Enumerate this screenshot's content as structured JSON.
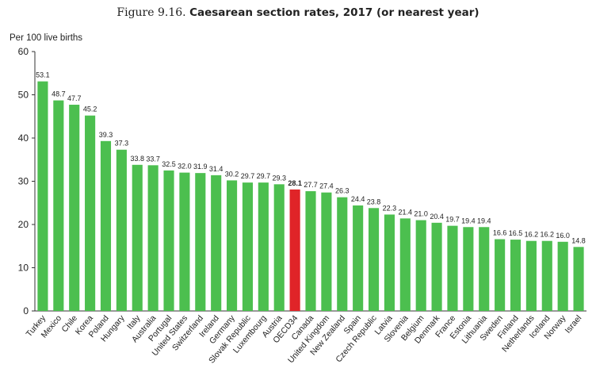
{
  "title": {
    "prefix": "Figure 9.16.",
    "main": "Caesarean section rates, 2017 (or nearest year)"
  },
  "chart_data": {
    "type": "bar",
    "ylabel": "Per 100 live births",
    "xlabel": "",
    "ylim": [
      0,
      60
    ],
    "yticks": [
      0,
      10,
      20,
      30,
      40,
      50,
      60
    ],
    "grid": false,
    "bar_color": "#4CBF4F",
    "highlight_color": "#E02428",
    "highlight_category": "OECD34",
    "categories": [
      "Turkey",
      "Mexico",
      "Chile",
      "Korea",
      "Poland",
      "Hungary",
      "Italy",
      "Australia",
      "Portugal",
      "United States",
      "Switzerland",
      "Ireland",
      "Germany",
      "Slovak Republic",
      "Luxembourg",
      "Austria",
      "OECD34",
      "Canada",
      "United Kingdom",
      "New Zealand",
      "Spain",
      "Czech Republic",
      "Latvia",
      "Slovenia",
      "Belgium",
      "Denmark",
      "France",
      "Estonia",
      "Lithuania",
      "Sweden",
      "Finland",
      "Netherlands",
      "Iceland",
      "Norway",
      "Israel"
    ],
    "values": [
      53.1,
      48.7,
      47.7,
      45.2,
      39.3,
      37.3,
      33.8,
      33.7,
      32.5,
      32.0,
      31.9,
      31.4,
      30.2,
      29.7,
      29.7,
      29.3,
      28.1,
      27.7,
      27.4,
      26.3,
      24.4,
      23.8,
      22.3,
      21.4,
      21.0,
      20.4,
      19.7,
      19.4,
      19.4,
      16.6,
      16.5,
      16.2,
      16.2,
      16.0,
      14.8
    ],
    "value_labels": [
      "53.1",
      "48.7",
      "47.7",
      "45.2",
      "39.3",
      "37.3",
      "33.8",
      "33.7",
      "32.5",
      "32.0",
      "31.9",
      "31.4",
      "30.2",
      "29.7",
      "29.7",
      "29.3",
      "28.1",
      "27.7",
      "27.4",
      "26.3",
      "24.4",
      "23.8",
      "22.3",
      "21.4",
      "21.0",
      "20.4",
      "19.7",
      "19.4",
      "19.4",
      "16.6",
      "16.5",
      "16.2",
      "16.2",
      "16.0",
      "14.8"
    ]
  }
}
